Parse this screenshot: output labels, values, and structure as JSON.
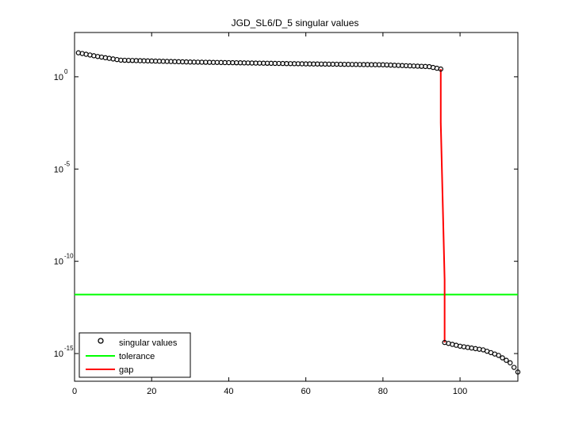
{
  "chart_data": {
    "type": "scatter",
    "title": "JGD_SL6/D_5 singular values",
    "xlabel": "",
    "ylabel": "",
    "xlim": [
      0,
      115
    ],
    "ylim_log10": [
      -16.5,
      2.4
    ],
    "yscale": "log",
    "x_ticks": [
      0,
      20,
      40,
      60,
      80,
      100
    ],
    "y_ticks": [
      {
        "base": "10",
        "exp": "0"
      },
      {
        "base": "10",
        "exp": "-5"
      },
      {
        "base": "10",
        "exp": "-10"
      },
      {
        "base": "10",
        "exp": "-15"
      }
    ],
    "y_tick_values_log10": [
      0,
      -5,
      -10,
      -15
    ],
    "grid": false,
    "legend_position": "bottom-left",
    "series": [
      {
        "name": "singular values",
        "kind": "markers",
        "color": "#000000",
        "y_log10_knots": [
          [
            1,
            1.3
          ],
          [
            6,
            1.1
          ],
          [
            12,
            0.9
          ],
          [
            30,
            0.8
          ],
          [
            60,
            0.7
          ],
          [
            80,
            0.65
          ],
          [
            92,
            0.55
          ],
          [
            95,
            0.42
          ],
          [
            96,
            -14.4
          ],
          [
            100,
            -14.6
          ],
          [
            106,
            -14.8
          ],
          [
            110,
            -15.1
          ],
          [
            113,
            -15.5
          ],
          [
            115,
            -16.0
          ]
        ],
        "count": 115
      },
      {
        "name": "tolerance",
        "kind": "hline",
        "color": "#00ff00",
        "y_log10": -11.8
      },
      {
        "name": "gap",
        "kind": "line",
        "color": "#ff0000",
        "x": [
          95,
          95,
          96,
          96
        ],
        "y_log10": [
          0.42,
          -2.5,
          -11.0,
          -14.4
        ]
      }
    ]
  }
}
